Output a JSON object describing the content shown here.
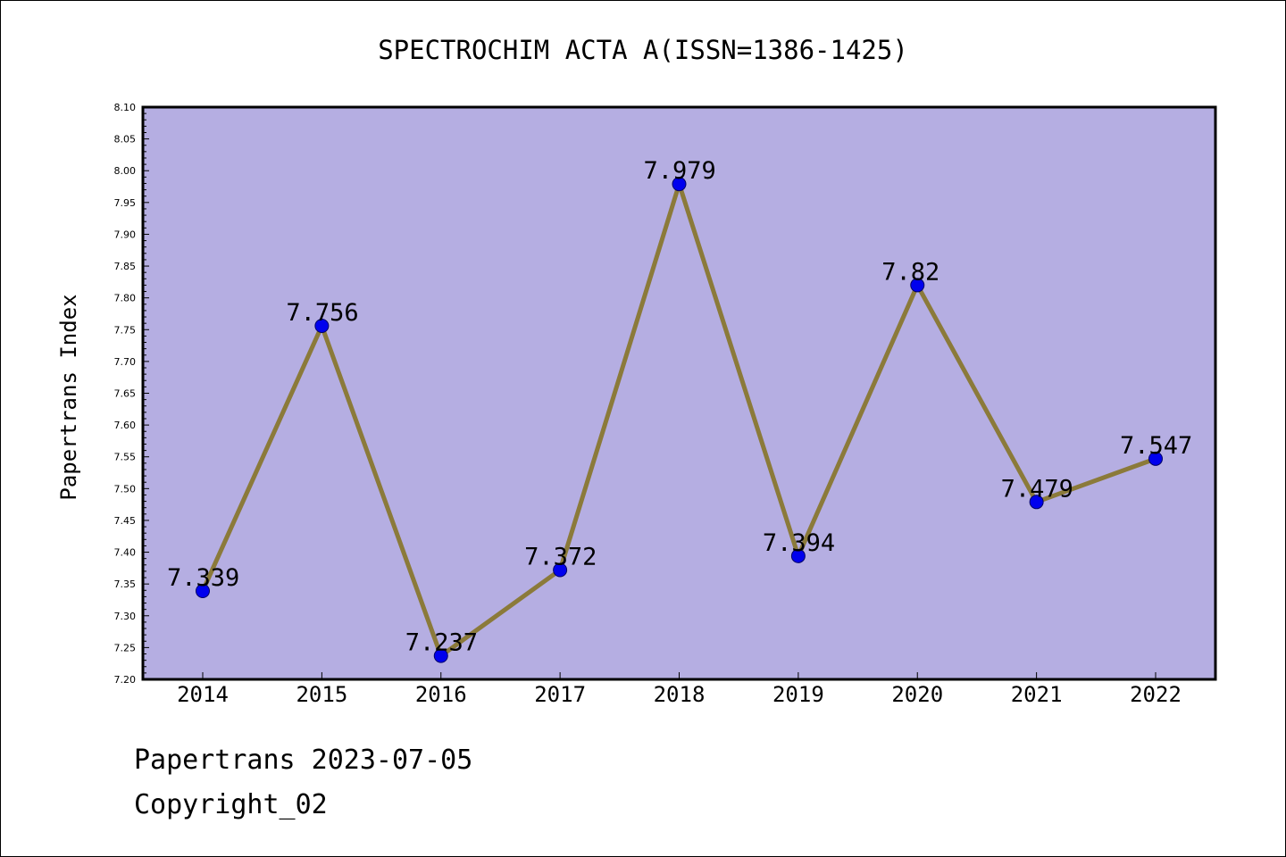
{
  "chart_data": {
    "type": "line",
    "title": "SPECTROCHIM ACTA A(ISSN=1386-1425)",
    "ylabel": "Papertrans Index",
    "xlabel": "",
    "categories": [
      "2014",
      "2015",
      "2016",
      "2017",
      "2018",
      "2019",
      "2020",
      "2021",
      "2022"
    ],
    "values": [
      7.339,
      7.756,
      7.237,
      7.372,
      7.979,
      7.394,
      7.82,
      7.479,
      7.547
    ],
    "data_labels": [
      "7.339",
      "7.756",
      "7.237",
      "7.372",
      "7.979",
      "7.394",
      "7.82",
      "7.479",
      "7.547"
    ],
    "ylim": [
      7.2,
      8.1
    ],
    "yticks": [
      "7.20",
      "7.25",
      "7.30",
      "7.35",
      "7.40",
      "7.45",
      "7.50",
      "7.55",
      "7.60",
      "7.65",
      "7.70",
      "7.75",
      "7.80",
      "7.85",
      "7.90",
      "7.95",
      "8.00",
      "8.05",
      "8.10"
    ],
    "grid": false,
    "colors": {
      "plot_background": "#b5aee2",
      "line": "#8b7a3a",
      "marker_fill": "#0000ee",
      "marker_edge": "#000066"
    }
  },
  "footer": {
    "line1": "Papertrans 2023-07-05",
    "line2": "Copyright_02"
  }
}
